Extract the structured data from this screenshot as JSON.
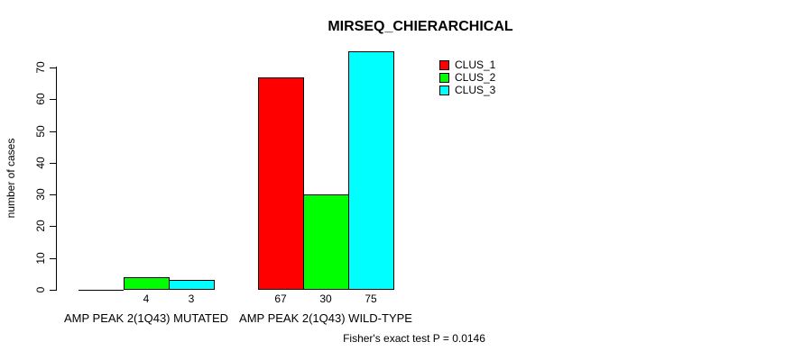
{
  "chart_data": {
    "type": "bar",
    "title": "MIRSEQ_CHIERARCHICAL",
    "xlabel": "",
    "ylabel": "number of cases",
    "categories": [
      "AMP PEAK 2(1Q43) MUTATED",
      "AMP PEAK 2(1Q43) WILD-TYPE"
    ],
    "series": [
      {
        "name": "CLUS_1",
        "color": "#FF0000",
        "values": [
          0,
          67
        ]
      },
      {
        "name": "CLUS_2",
        "color": "#00FF00",
        "values": [
          4,
          30
        ]
      },
      {
        "name": "CLUS_3",
        "color": "#00FFFF",
        "values": [
          3,
          75
        ]
      }
    ],
    "bar_value_labels": [
      [
        "",
        "4",
        "3"
      ],
      [
        "67",
        "30",
        "75"
      ]
    ],
    "yticks": [
      0,
      10,
      20,
      30,
      40,
      50,
      60,
      70
    ],
    "ylim": [
      0,
      75
    ],
    "grid": false,
    "legend_position": "top-right",
    "annotation": "Fisher's exact test P = 0.0146"
  },
  "colors": {
    "background": "#FFFFFF",
    "axis": "#000000",
    "text": "#000000"
  }
}
